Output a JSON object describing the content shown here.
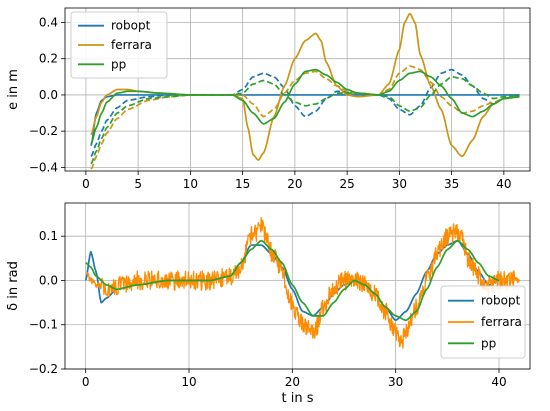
{
  "chart_data": [
    {
      "type": "line",
      "id": "top",
      "xlabel": "",
      "ylabel": "e in m",
      "xlim": [
        -2,
        42.5
      ],
      "ylim": [
        -0.42,
        0.48
      ],
      "xticks": [
        0,
        5,
        10,
        15,
        20,
        25,
        30,
        35,
        40
      ],
      "yticks": [
        -0.4,
        -0.2,
        0.0,
        0.2,
        0.4
      ],
      "ytick_labels": [
        "−0.4",
        "−0.2",
        "0.0",
        "0.2",
        "0.4"
      ],
      "xtick_labels": [
        "0",
        "5",
        "10",
        "15",
        "20",
        "25",
        "30",
        "35",
        "40"
      ],
      "grid": true,
      "legend": {
        "position": "top-left",
        "entries": [
          "robopt",
          "ferrara",
          "pp"
        ]
      },
      "series": [
        {
          "name": "robopt",
          "color": "#1f77b4",
          "style": "solid",
          "x": [
            0.5,
            1,
            1.5,
            2,
            3,
            5,
            8,
            14,
            20,
            28,
            36,
            40,
            41.5
          ],
          "y": [
            -0.28,
            -0.1,
            -0.03,
            -0.01,
            0.0,
            0.0,
            0.0,
            0.0,
            0.0,
            0.0,
            0.0,
            0.0,
            0.0
          ]
        },
        {
          "name": "",
          "color": "#1f77b4",
          "style": "dashed",
          "x": [
            0.5,
            1,
            1.5,
            2,
            3,
            4,
            6,
            8,
            10,
            14,
            15,
            16,
            17,
            18,
            19,
            20,
            21,
            22,
            23,
            24,
            26,
            28,
            29,
            30,
            31,
            32,
            33,
            34,
            35,
            36,
            37,
            38,
            39,
            40,
            41.5
          ],
          "y": [
            -0.34,
            -0.27,
            -0.2,
            -0.14,
            -0.07,
            -0.03,
            -0.01,
            0.0,
            0.0,
            0.0,
            0.03,
            0.1,
            0.12,
            0.1,
            0.04,
            -0.06,
            -0.12,
            -0.09,
            -0.02,
            0.02,
            0.01,
            0.0,
            -0.02,
            -0.08,
            -0.11,
            -0.06,
            0.04,
            0.12,
            0.14,
            0.11,
            0.05,
            -0.02,
            -0.05,
            -0.02,
            0.0
          ]
        },
        {
          "name": "ferrara",
          "color": "#cc9514",
          "style": "solid",
          "x": [
            0.5,
            1,
            1.5,
            2,
            3,
            4,
            5,
            7,
            10,
            14,
            15,
            15.5,
            16,
            16.5,
            17,
            18,
            19,
            20,
            21,
            22,
            22.5,
            23,
            24,
            25,
            26,
            28,
            29,
            30,
            30.5,
            31,
            31.5,
            32,
            33,
            34,
            35,
            36,
            37,
            38,
            39,
            40,
            41.5
          ],
          "y": [
            -0.22,
            -0.12,
            -0.04,
            0.0,
            0.03,
            0.03,
            0.02,
            0.01,
            0.0,
            0.0,
            -0.02,
            -0.18,
            -0.33,
            -0.36,
            -0.32,
            -0.12,
            0.05,
            0.2,
            0.3,
            0.34,
            0.3,
            0.18,
            0.05,
            0.0,
            -0.01,
            0.0,
            0.06,
            0.25,
            0.4,
            0.45,
            0.4,
            0.22,
            0.05,
            -0.08,
            -0.28,
            -0.34,
            -0.25,
            -0.12,
            -0.05,
            -0.02,
            -0.01
          ]
        },
        {
          "name": "",
          "color": "#cc9514",
          "style": "dashed",
          "x": [
            0.5,
            1,
            1.5,
            2,
            3,
            4,
            6,
            8,
            10,
            12,
            14,
            15,
            16,
            17,
            18,
            19,
            20,
            21,
            22,
            23,
            24,
            25,
            26,
            28,
            29,
            30,
            31,
            32,
            33,
            34,
            35,
            36,
            37,
            38,
            39,
            40,
            41.5
          ],
          "y": [
            -0.41,
            -0.34,
            -0.27,
            -0.21,
            -0.13,
            -0.08,
            -0.03,
            -0.01,
            0.0,
            0.0,
            0.0,
            0.0,
            -0.05,
            -0.12,
            -0.08,
            0.01,
            0.08,
            0.12,
            0.13,
            0.09,
            0.05,
            0.02,
            0.01,
            0.0,
            0.03,
            0.12,
            0.16,
            0.14,
            0.07,
            -0.01,
            -0.06,
            -0.1,
            -0.09,
            -0.06,
            -0.04,
            -0.02,
            -0.01
          ]
        },
        {
          "name": "pp",
          "color": "#2ca02c",
          "style": "solid",
          "x": [
            0.5,
            1,
            1.5,
            2,
            3,
            4,
            5,
            7,
            10,
            14,
            15,
            16,
            17,
            18,
            19,
            20,
            21,
            22,
            23,
            24,
            25,
            26,
            28,
            29,
            30,
            31,
            32,
            33,
            34,
            35,
            36,
            37,
            38,
            39,
            40,
            41.5
          ],
          "y": [
            -0.27,
            -0.18,
            -0.1,
            -0.04,
            0.01,
            0.02,
            0.02,
            0.01,
            0.0,
            0.0,
            -0.03,
            -0.1,
            -0.16,
            -0.13,
            -0.04,
            0.06,
            0.13,
            0.14,
            0.11,
            0.07,
            0.03,
            0.01,
            0.0,
            0.02,
            0.08,
            0.12,
            0.13,
            0.1,
            0.05,
            -0.02,
            -0.1,
            -0.12,
            -0.09,
            -0.05,
            -0.02,
            -0.01
          ]
        },
        {
          "name": "",
          "color": "#2ca02c",
          "style": "dashed",
          "x": [
            0.5,
            1,
            1.5,
            2,
            3,
            4,
            6,
            8,
            10,
            14,
            15,
            16,
            17,
            18,
            19,
            20,
            21,
            22,
            23,
            24,
            26,
            28,
            29,
            30,
            31,
            32,
            33,
            34,
            35,
            36,
            37,
            38,
            39,
            40,
            41.5
          ],
          "y": [
            -0.38,
            -0.31,
            -0.24,
            -0.18,
            -0.1,
            -0.06,
            -0.02,
            -0.01,
            0.0,
            0.0,
            0.01,
            0.06,
            0.08,
            0.06,
            0.0,
            -0.04,
            -0.06,
            -0.05,
            -0.02,
            0.01,
            0.01,
            0.0,
            -0.01,
            -0.06,
            -0.09,
            -0.07,
            0.0,
            0.06,
            0.1,
            0.09,
            0.05,
            0.01,
            -0.02,
            -0.01,
            0.0
          ]
        }
      ]
    },
    {
      "type": "line",
      "id": "bottom",
      "xlabel": "t in s",
      "ylabel": "δ in rad",
      "xlim": [
        -2,
        43
      ],
      "ylim": [
        -0.2,
        0.175
      ],
      "xticks": [
        0,
        10,
        20,
        30,
        40
      ],
      "xtick_labels": [
        "0",
        "10",
        "20",
        "30",
        "40"
      ],
      "yticks": [
        -0.2,
        -0.1,
        0.0,
        0.1
      ],
      "ytick_labels": [
        "−0.2",
        "−0.1",
        "0.0",
        "0.1"
      ],
      "grid": true,
      "legend": {
        "position": "bottom-right",
        "entries": [
          "robopt",
          "ferrara",
          "pp"
        ]
      },
      "series": [
        {
          "name": "robopt",
          "color": "#1f77b4",
          "style": "solid",
          "x": [
            0,
            0.5,
            1,
            1.5,
            2,
            3,
            5,
            8,
            12,
            14,
            15,
            16,
            17,
            18,
            19,
            20,
            21,
            22,
            23,
            24,
            25,
            26,
            27,
            28,
            29,
            30,
            31,
            32,
            33,
            34,
            35,
            36,
            37,
            38,
            39,
            40
          ],
          "y": [
            0.0,
            0.065,
            0.02,
            -0.05,
            -0.04,
            -0.02,
            -0.01,
            0.0,
            0.0,
            0.01,
            0.04,
            0.08,
            0.08,
            0.06,
            0.03,
            -0.02,
            -0.07,
            -0.08,
            -0.06,
            -0.03,
            -0.01,
            0.0,
            -0.01,
            -0.03,
            -0.06,
            -0.09,
            -0.07,
            -0.03,
            0.02,
            0.06,
            0.08,
            0.09,
            0.06,
            0.02,
            -0.01,
            0.0
          ]
        },
        {
          "name": "ferrara",
          "color": "#ff8c00",
          "style": "noisy",
          "noise": 0.022,
          "x": [
            0,
            0.5,
            1,
            2,
            3,
            5,
            8,
            12,
            14,
            15,
            16,
            17,
            17.5,
            18,
            19,
            20,
            21,
            22,
            22.5,
            23,
            24,
            25,
            26,
            27,
            28,
            29,
            30,
            30.5,
            31,
            32,
            33,
            34,
            35,
            36,
            36.5,
            37,
            38,
            39,
            40,
            41,
            42
          ],
          "y": [
            0.02,
            0.0,
            -0.01,
            -0.02,
            -0.01,
            0.0,
            0.0,
            0.0,
            0.01,
            0.03,
            0.1,
            0.12,
            0.1,
            0.06,
            0.02,
            -0.06,
            -0.1,
            -0.12,
            -0.1,
            -0.06,
            -0.02,
            0.0,
            0.0,
            -0.01,
            -0.03,
            -0.07,
            -0.12,
            -0.14,
            -0.12,
            -0.06,
            0.0,
            0.06,
            0.1,
            0.11,
            0.09,
            0.05,
            0.01,
            -0.01,
            0.0,
            0.0,
            0.0
          ]
        },
        {
          "name": "pp",
          "color": "#2ca02c",
          "style": "solid",
          "x": [
            0,
            0.5,
            1,
            2,
            3,
            5,
            8,
            12,
            14,
            15,
            16,
            17,
            18,
            19,
            20,
            21,
            22,
            23,
            24,
            25,
            26,
            27,
            28,
            29,
            30,
            31,
            32,
            33,
            34,
            35,
            36,
            37,
            38,
            39,
            40
          ],
          "y": [
            0.04,
            0.03,
            0.01,
            -0.01,
            -0.02,
            -0.01,
            0.0,
            0.0,
            0.01,
            0.04,
            0.07,
            0.09,
            0.07,
            0.04,
            -0.01,
            -0.05,
            -0.08,
            -0.08,
            -0.05,
            -0.02,
            0.0,
            -0.01,
            -0.03,
            -0.06,
            -0.08,
            -0.09,
            -0.07,
            -0.02,
            0.03,
            0.07,
            0.09,
            0.07,
            0.04,
            0.01,
            0.0
          ]
        }
      ]
    }
  ]
}
